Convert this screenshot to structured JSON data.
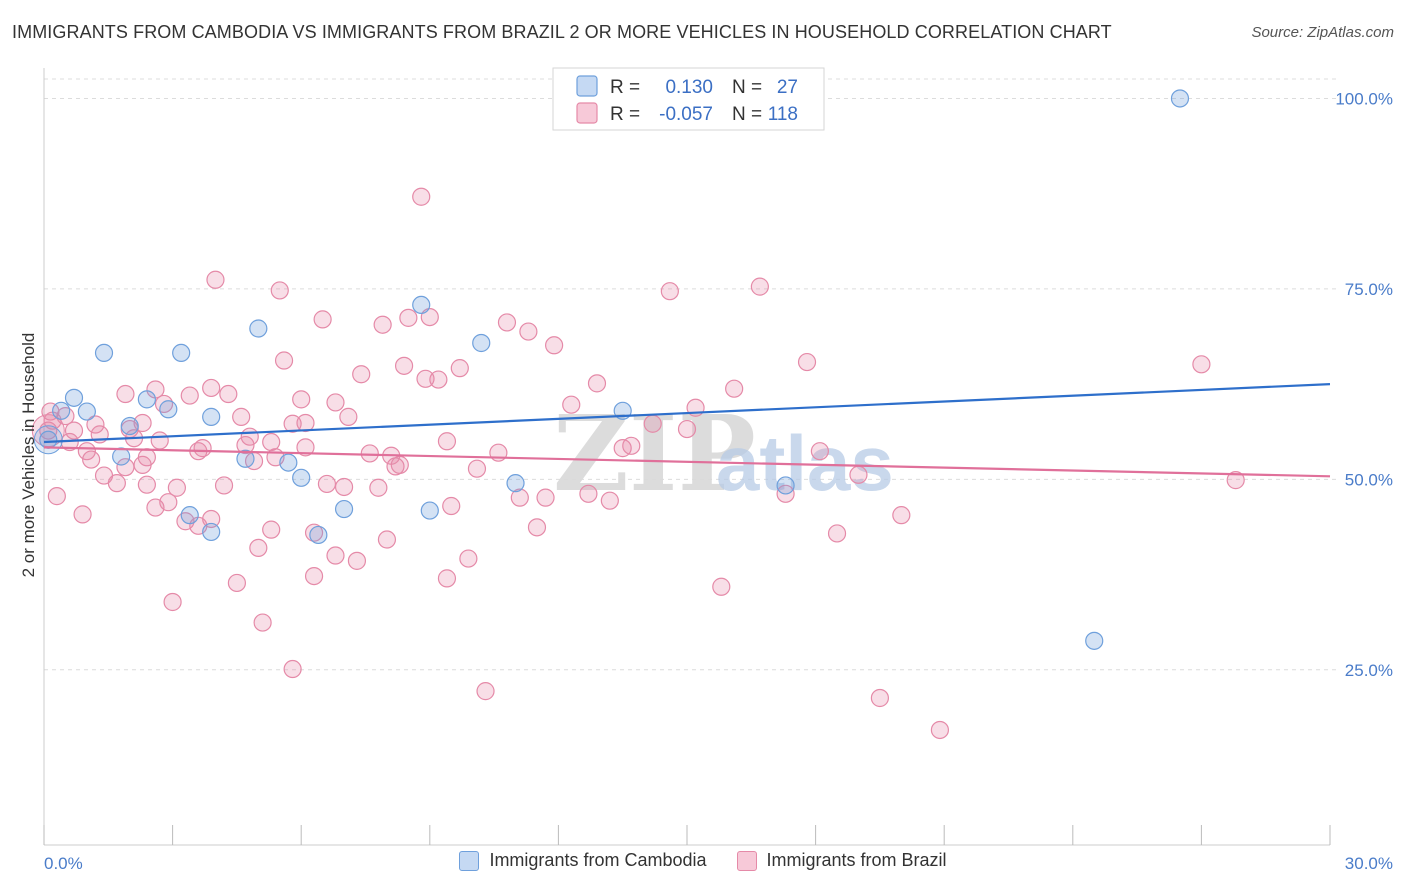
{
  "title": "IMMIGRANTS FROM CAMBODIA VS IMMIGRANTS FROM BRAZIL 2 OR MORE VEHICLES IN HOUSEHOLD CORRELATION CHART",
  "source": "Source: ZipAtlas.com",
  "watermark": {
    "zip": "ZIP",
    "atlas": "atlas"
  },
  "colors": {
    "cambodia": "#6fa0dc",
    "brazil": "#e58aa8",
    "cambodia_line": "#2e6fcb",
    "brazil_line": "#e0709a",
    "tick_label": "#4a7cc9"
  },
  "legend": {
    "rows": [
      {
        "r_label": "R =",
        "r_value": "0.130",
        "n_label": "N =",
        "n_value": "27"
      },
      {
        "r_label": "R =",
        "r_value": "-0.057",
        "n_label": "N =",
        "n_value": "118"
      }
    ]
  },
  "bottom_legend": {
    "cambodia": "Immigrants from Cambodia",
    "brazil": "Immigrants from Brazil"
  },
  "chart_data": {
    "type": "scatter",
    "title": "IMMIGRANTS FROM CAMBODIA VS IMMIGRANTS FROM BRAZIL 2 OR MORE VEHICLES IN HOUSEHOLD CORRELATION CHART",
    "xlabel": "",
    "ylabel": "2 or more Vehicles in Household",
    "xlim": [
      0,
      30
    ],
    "ylim": [
      2,
      104
    ],
    "x_tick_labels": [
      "0.0%",
      "30.0%"
    ],
    "y_tick_labels": [
      "100.0%",
      "75.0%",
      "50.0%",
      "25.0%"
    ],
    "y_ticks": [
      100,
      75,
      50,
      25
    ],
    "grid": true,
    "legend_position": "top-center",
    "series": [
      {
        "name": "Immigrants from Cambodia",
        "trend": [
          [
            0,
            54.9
          ],
          [
            30,
            62.5
          ]
        ],
        "points": [
          [
            0.1,
            55.2
          ],
          [
            0.4,
            59.0
          ],
          [
            0.7,
            60.7
          ],
          [
            1.0,
            58.9
          ],
          [
            1.4,
            66.6
          ],
          [
            1.8,
            53.0
          ],
          [
            2.0,
            57.0
          ],
          [
            2.4,
            60.5
          ],
          [
            2.9,
            59.2
          ],
          [
            3.2,
            66.6
          ],
          [
            3.4,
            45.3
          ],
          [
            3.9,
            58.2
          ],
          [
            3.9,
            43.1
          ],
          [
            4.7,
            52.7
          ],
          [
            5.0,
            69.8
          ],
          [
            5.7,
            52.2
          ],
          [
            6.0,
            50.2
          ],
          [
            6.4,
            42.7
          ],
          [
            7.0,
            46.1
          ],
          [
            8.8,
            72.9
          ],
          [
            9.0,
            45.9
          ],
          [
            10.2,
            67.9
          ],
          [
            11.0,
            49.5
          ],
          [
            13.5,
            59.0
          ],
          [
            17.3,
            49.2
          ],
          [
            24.5,
            28.8
          ],
          [
            26.5,
            100.0
          ]
        ],
        "big_point": [
          0.1,
          55.2
        ]
      },
      {
        "name": "Immigrants from Brazil",
        "trend": [
          [
            0,
            54.2
          ],
          [
            30,
            50.4
          ]
        ],
        "points": [
          [
            0.1,
            56.4
          ],
          [
            0.2,
            57.7
          ],
          [
            0.3,
            47.8
          ],
          [
            0.5,
            58.3
          ],
          [
            0.7,
            56.4
          ],
          [
            0.9,
            45.4
          ],
          [
            1.0,
            53.7
          ],
          [
            1.2,
            57.2
          ],
          [
            1.3,
            55.9
          ],
          [
            1.4,
            50.5
          ],
          [
            1.7,
            49.5
          ],
          [
            1.9,
            51.6
          ],
          [
            1.9,
            61.2
          ],
          [
            2.1,
            55.4
          ],
          [
            2.3,
            57.4
          ],
          [
            2.4,
            52.9
          ],
          [
            2.4,
            49.3
          ],
          [
            2.6,
            46.3
          ],
          [
            2.6,
            61.8
          ],
          [
            2.8,
            59.9
          ],
          [
            2.9,
            47.0
          ],
          [
            3.0,
            33.9
          ],
          [
            3.1,
            48.9
          ],
          [
            3.3,
            44.5
          ],
          [
            3.4,
            61.0
          ],
          [
            3.6,
            43.9
          ],
          [
            3.7,
            54.1
          ],
          [
            3.9,
            62.0
          ],
          [
            3.9,
            44.8
          ],
          [
            4.0,
            76.2
          ],
          [
            4.2,
            49.2
          ],
          [
            4.3,
            61.2
          ],
          [
            4.5,
            36.4
          ],
          [
            4.6,
            58.2
          ],
          [
            4.7,
            54.5
          ],
          [
            4.9,
            52.4
          ],
          [
            5.0,
            41.0
          ],
          [
            5.1,
            31.2
          ],
          [
            5.3,
            43.4
          ],
          [
            5.4,
            52.9
          ],
          [
            5.5,
            74.8
          ],
          [
            5.6,
            65.6
          ],
          [
            5.8,
            57.3
          ],
          [
            6.0,
            60.5
          ],
          [
            6.1,
            57.4
          ],
          [
            6.3,
            43.0
          ],
          [
            6.3,
            37.3
          ],
          [
            6.5,
            71.0
          ],
          [
            6.6,
            49.4
          ],
          [
            6.8,
            60.1
          ],
          [
            7.0,
            49.0
          ],
          [
            7.1,
            58.2
          ],
          [
            7.3,
            39.3
          ],
          [
            7.4,
            63.8
          ],
          [
            7.6,
            53.4
          ],
          [
            7.9,
            70.3
          ],
          [
            8.0,
            42.1
          ],
          [
            8.2,
            51.7
          ],
          [
            8.3,
            51.9
          ],
          [
            8.4,
            64.9
          ],
          [
            8.5,
            71.2
          ],
          [
            8.8,
            87.1
          ],
          [
            8.9,
            63.2
          ],
          [
            9.0,
            71.3
          ],
          [
            9.2,
            63.1
          ],
          [
            9.4,
            37.0
          ],
          [
            9.5,
            46.5
          ],
          [
            9.7,
            64.6
          ],
          [
            9.9,
            39.6
          ],
          [
            10.1,
            51.4
          ],
          [
            10.3,
            22.2
          ],
          [
            10.8,
            70.6
          ],
          [
            11.1,
            47.6
          ],
          [
            11.3,
            69.4
          ],
          [
            11.5,
            43.7
          ],
          [
            11.9,
            67.6
          ],
          [
            12.3,
            59.8
          ],
          [
            12.9,
            62.6
          ],
          [
            13.2,
            47.2
          ],
          [
            13.5,
            54.1
          ],
          [
            14.2,
            57.3
          ],
          [
            14.6,
            74.7
          ],
          [
            15.0,
            56.6
          ],
          [
            15.2,
            59.4
          ],
          [
            15.8,
            35.9
          ],
          [
            16.1,
            61.9
          ],
          [
            16.7,
            75.3
          ],
          [
            17.3,
            48.1
          ],
          [
            17.8,
            65.4
          ],
          [
            18.1,
            53.7
          ],
          [
            18.5,
            42.9
          ],
          [
            19.0,
            50.6
          ],
          [
            19.5,
            21.3
          ],
          [
            20.0,
            45.3
          ],
          [
            20.9,
            17.1
          ],
          [
            27.0,
            65.1
          ],
          [
            27.8,
            49.9
          ],
          [
            0.15,
            58.9
          ],
          [
            0.6,
            54.9
          ],
          [
            1.1,
            52.6
          ],
          [
            2.0,
            56.6
          ],
          [
            2.3,
            51.9
          ],
          [
            2.7,
            55.1
          ],
          [
            3.6,
            53.7
          ],
          [
            4.8,
            55.6
          ],
          [
            5.3,
            54.9
          ],
          [
            5.8,
            25.1
          ],
          [
            6.1,
            54.2
          ],
          [
            6.8,
            40.0
          ],
          [
            7.8,
            48.9
          ],
          [
            8.1,
            53.1
          ],
          [
            9.4,
            55.0
          ],
          [
            10.6,
            53.5
          ],
          [
            11.7,
            47.6
          ],
          [
            12.7,
            48.1
          ],
          [
            13.7,
            54.4
          ]
        ],
        "big_point": [
          0.1,
          56.4
        ]
      }
    ]
  }
}
